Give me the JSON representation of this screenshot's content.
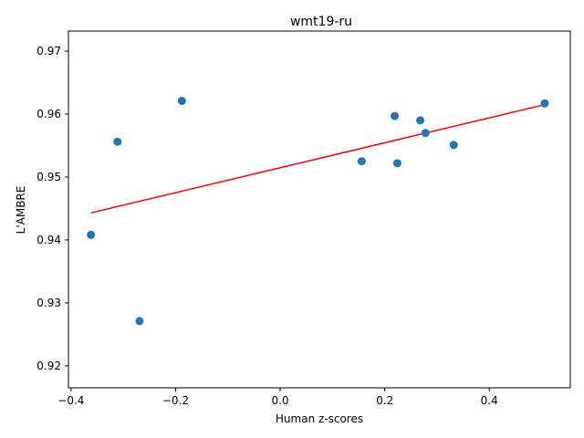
{
  "chart_data": {
    "type": "scatter",
    "title": "wmt19-ru",
    "xlabel": "Human z-scores",
    "ylabel": "L'AMBRE",
    "xlim": [
      -0.405,
      0.555
    ],
    "ylim": [
      0.9165,
      0.9732
    ],
    "xticks": [
      -0.4,
      -0.2,
      0.0,
      0.2,
      0.4
    ],
    "xtick_labels": [
      "−0.4",
      "−0.2",
      "0.0",
      "0.2",
      "0.4"
    ],
    "yticks": [
      0.92,
      0.93,
      0.94,
      0.95,
      0.96,
      0.97
    ],
    "ytick_labels": [
      "0.92",
      "0.93",
      "0.94",
      "0.95",
      "0.96",
      "0.97"
    ],
    "grid": false,
    "series": [
      {
        "marker_color": "#1f77b4",
        "points": [
          {
            "x": -0.362,
            "y": 0.9408
          },
          {
            "x": -0.311,
            "y": 0.9556
          },
          {
            "x": -0.269,
            "y": 0.9271
          },
          {
            "x": -0.188,
            "y": 0.9621
          },
          {
            "x": 0.156,
            "y": 0.9525
          },
          {
            "x": 0.219,
            "y": 0.9597
          },
          {
            "x": 0.224,
            "y": 0.9522
          },
          {
            "x": 0.268,
            "y": 0.959
          },
          {
            "x": 0.278,
            "y": 0.957
          },
          {
            "x": 0.332,
            "y": 0.9551
          },
          {
            "x": 0.506,
            "y": 0.9617
          }
        ]
      }
    ],
    "fit_line": {
      "color": "#ff0000",
      "x": [
        -0.362,
        0.506
      ],
      "y": [
        0.9443,
        0.9615
      ]
    }
  }
}
